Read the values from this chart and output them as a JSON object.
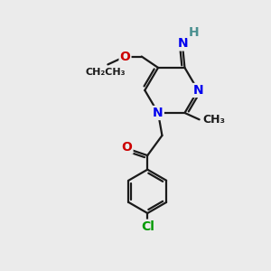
{
  "background_color": "#ebebeb",
  "bond_color": "#1a1a1a",
  "bond_width": 1.6,
  "atom_colors": {
    "N": "#0000ee",
    "O": "#cc0000",
    "Cl": "#009900",
    "H": "#4a9090",
    "C": "#1a1a1a"
  },
  "font_size_atom": 10,
  "font_size_label": 9
}
